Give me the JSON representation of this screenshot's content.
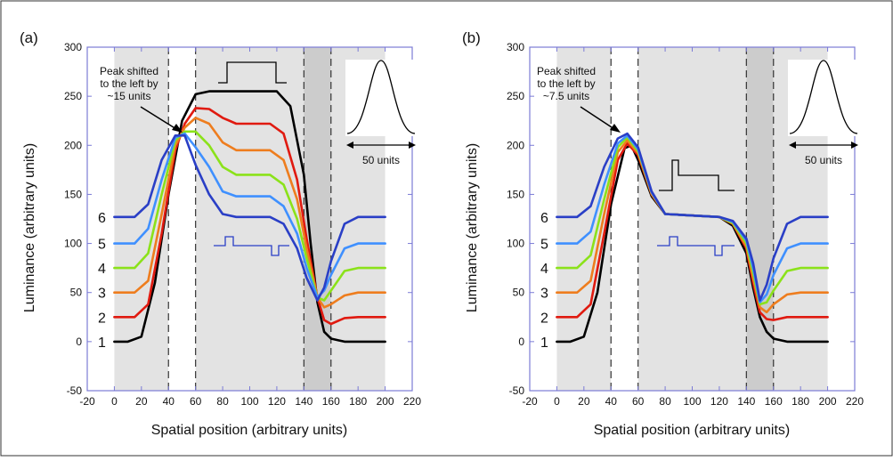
{
  "chart_data": [
    {
      "type": "line",
      "panel_label": "(a)",
      "xlabel": "Spatial position (arbitrary units)",
      "ylabel": "Luminance (arbitrary units)",
      "xlim": [
        -20,
        220
      ],
      "ylim": [
        -50,
        300
      ],
      "xticks": [
        "-20",
        "0",
        "20",
        "40",
        "60",
        "80",
        "100",
        "120",
        "140",
        "160",
        "180",
        "200",
        "220"
      ],
      "yticks": [
        "-50",
        "0",
        "50",
        "100",
        "150",
        "200",
        "250",
        "300"
      ],
      "grid": false,
      "shaded_regions": [
        {
          "from": 0,
          "to": 40,
          "color": "#e3e3e3"
        },
        {
          "from": 60,
          "to": 140,
          "color": "#e3e3e3"
        },
        {
          "from": 140,
          "to": 160,
          "color": "#cccccc"
        },
        {
          "from": 160,
          "to": 200,
          "color": "#e3e3e3"
        }
      ],
      "dashed_lines_x": [
        40,
        60,
        140,
        160
      ],
      "curve_labels": [
        "1",
        "2",
        "3",
        "4",
        "5",
        "6"
      ],
      "series": [
        {
          "color": "#000000",
          "points": [
            [
              0,
              0
            ],
            [
              10,
              0
            ],
            [
              20,
              5
            ],
            [
              30,
              60
            ],
            [
              40,
              150
            ],
            [
              50,
              225
            ],
            [
              60,
              252
            ],
            [
              70,
              255
            ],
            [
              120,
              255
            ],
            [
              130,
              240
            ],
            [
              140,
              170
            ],
            [
              145,
              100
            ],
            [
              150,
              40
            ],
            [
              155,
              10
            ],
            [
              160,
              3
            ],
            [
              170,
              0
            ],
            [
              200,
              0
            ]
          ]
        },
        {
          "color": "#e01a10",
          "points": [
            [
              0,
              25
            ],
            [
              15,
              25
            ],
            [
              25,
              38
            ],
            [
              35,
              110
            ],
            [
              45,
              195
            ],
            [
              52,
              222
            ],
            [
              60,
              238
            ],
            [
              70,
              237
            ],
            [
              80,
              228
            ],
            [
              90,
              222
            ],
            [
              115,
              222
            ],
            [
              125,
              212
            ],
            [
              135,
              165
            ],
            [
              142,
              105
            ],
            [
              150,
              45
            ],
            [
              155,
              22
            ],
            [
              160,
              18
            ],
            [
              170,
              24
            ],
            [
              180,
              25
            ],
            [
              200,
              25
            ]
          ]
        },
        {
          "color": "#ee7d1e",
          "points": [
            [
              0,
              50
            ],
            [
              15,
              50
            ],
            [
              25,
              62
            ],
            [
              35,
              130
            ],
            [
              45,
              200
            ],
            [
              52,
              218
            ],
            [
              60,
              228
            ],
            [
              70,
              222
            ],
            [
              80,
              203
            ],
            [
              90,
              195
            ],
            [
              115,
              195
            ],
            [
              125,
              185
            ],
            [
              135,
              145
            ],
            [
              142,
              95
            ],
            [
              150,
              45
            ],
            [
              155,
              35
            ],
            [
              160,
              38
            ],
            [
              170,
              47
            ],
            [
              180,
              50
            ],
            [
              200,
              50
            ]
          ]
        },
        {
          "color": "#8be21a",
          "points": [
            [
              0,
              75
            ],
            [
              15,
              75
            ],
            [
              25,
              90
            ],
            [
              35,
              150
            ],
            [
              45,
              205
            ],
            [
              52,
              214
            ],
            [
              60,
              214
            ],
            [
              70,
              200
            ],
            [
              80,
              178
            ],
            [
              90,
              170
            ],
            [
              115,
              170
            ],
            [
              125,
              160
            ],
            [
              135,
              125
            ],
            [
              142,
              85
            ],
            [
              150,
              45
            ],
            [
              155,
              42
            ],
            [
              160,
              52
            ],
            [
              170,
              72
            ],
            [
              180,
              75
            ],
            [
              200,
              75
            ]
          ]
        },
        {
          "color": "#3f90ff",
          "points": [
            [
              0,
              100
            ],
            [
              15,
              100
            ],
            [
              25,
              115
            ],
            [
              35,
              165
            ],
            [
              45,
              208
            ],
            [
              52,
              212
            ],
            [
              60,
              198
            ],
            [
              70,
              178
            ],
            [
              80,
              153
            ],
            [
              90,
              148
            ],
            [
              115,
              148
            ],
            [
              125,
              138
            ],
            [
              135,
              110
            ],
            [
              142,
              75
            ],
            [
              150,
              45
            ],
            [
              155,
              52
            ],
            [
              160,
              68
            ],
            [
              170,
              95
            ],
            [
              180,
              100
            ],
            [
              200,
              100
            ]
          ]
        },
        {
          "color": "#2a3fc6",
          "points": [
            [
              0,
              127
            ],
            [
              15,
              127
            ],
            [
              25,
              140
            ],
            [
              35,
              185
            ],
            [
              45,
              210
            ],
            [
              52,
              210
            ],
            [
              60,
              180
            ],
            [
              70,
              150
            ],
            [
              80,
              130
            ],
            [
              90,
              127
            ],
            [
              115,
              127
            ],
            [
              125,
              120
            ],
            [
              135,
              95
            ],
            [
              142,
              65
            ],
            [
              150,
              42
            ],
            [
              155,
              55
            ],
            [
              160,
              82
            ],
            [
              170,
              120
            ],
            [
              180,
              127
            ],
            [
              200,
              127
            ]
          ]
        }
      ],
      "inset": {
        "text": "50 units"
      },
      "annotation": {
        "text": [
          "Peak shifted",
          "to the left by",
          "~15 units"
        ]
      }
    },
    {
      "type": "line",
      "panel_label": "(b)",
      "xlabel": "Spatial position (arbitrary units)",
      "ylabel": "Luminance (arbitrary units)",
      "xlim": [
        -20,
        220
      ],
      "ylim": [
        -50,
        300
      ],
      "xticks": [
        "-20",
        "0",
        "20",
        "40",
        "60",
        "80",
        "100",
        "120",
        "140",
        "160",
        "180",
        "200",
        "220"
      ],
      "yticks": [
        "-50",
        "0",
        "50",
        "100",
        "150",
        "200",
        "250",
        "300"
      ],
      "grid": false,
      "shaded_regions": [
        {
          "from": 0,
          "to": 40,
          "color": "#e3e3e3"
        },
        {
          "from": 60,
          "to": 140,
          "color": "#e3e3e3"
        },
        {
          "from": 140,
          "to": 160,
          "color": "#cccccc"
        },
        {
          "from": 160,
          "to": 200,
          "color": "#e3e3e3"
        }
      ],
      "dashed_lines_x": [
        40,
        60,
        140,
        160
      ],
      "curve_labels": [
        "1",
        "2",
        "3",
        "4",
        "5",
        "6"
      ],
      "series": [
        {
          "color": "#000000",
          "points": [
            [
              0,
              0
            ],
            [
              10,
              0
            ],
            [
              20,
              5
            ],
            [
              30,
              50
            ],
            [
              40,
              140
            ],
            [
              50,
              197
            ],
            [
              55,
              200
            ],
            [
              60,
              185
            ],
            [
              70,
              148
            ],
            [
              80,
              130
            ],
            [
              120,
              127
            ],
            [
              130,
              118
            ],
            [
              140,
              90
            ],
            [
              145,
              55
            ],
            [
              150,
              25
            ],
            [
              155,
              10
            ],
            [
              160,
              3
            ],
            [
              170,
              0
            ],
            [
              200,
              0
            ]
          ]
        },
        {
          "color": "#e01a10",
          "points": [
            [
              0,
              25
            ],
            [
              15,
              25
            ],
            [
              25,
              38
            ],
            [
              35,
              110
            ],
            [
              45,
              185
            ],
            [
              52,
              202
            ],
            [
              60,
              190
            ],
            [
              70,
              150
            ],
            [
              80,
              130
            ],
            [
              120,
              127
            ],
            [
              130,
              120
            ],
            [
              140,
              95
            ],
            [
              145,
              60
            ],
            [
              150,
              30
            ],
            [
              155,
              23
            ],
            [
              160,
              22
            ],
            [
              170,
              25
            ],
            [
              200,
              25
            ]
          ]
        },
        {
          "color": "#ee7d1e",
          "points": [
            [
              0,
              50
            ],
            [
              15,
              50
            ],
            [
              25,
              62
            ],
            [
              35,
              130
            ],
            [
              45,
              193
            ],
            [
              52,
              205
            ],
            [
              60,
              192
            ],
            [
              70,
              150
            ],
            [
              80,
              130
            ],
            [
              120,
              127
            ],
            [
              130,
              120
            ],
            [
              140,
              97
            ],
            [
              145,
              65
            ],
            [
              150,
              35
            ],
            [
              155,
              30
            ],
            [
              160,
              38
            ],
            [
              170,
              48
            ],
            [
              180,
              50
            ],
            [
              200,
              50
            ]
          ]
        },
        {
          "color": "#8be21a",
          "points": [
            [
              0,
              75
            ],
            [
              15,
              75
            ],
            [
              25,
              88
            ],
            [
              35,
              145
            ],
            [
              45,
              198
            ],
            [
              52,
              208
            ],
            [
              60,
              194
            ],
            [
              70,
              152
            ],
            [
              80,
              130
            ],
            [
              120,
              127
            ],
            [
              130,
              121
            ],
            [
              140,
              100
            ],
            [
              145,
              70
            ],
            [
              150,
              38
            ],
            [
              155,
              40
            ],
            [
              160,
              52
            ],
            [
              170,
              72
            ],
            [
              180,
              75
            ],
            [
              200,
              75
            ]
          ]
        },
        {
          "color": "#3f90ff",
          "points": [
            [
              0,
              100
            ],
            [
              15,
              100
            ],
            [
              25,
              112
            ],
            [
              35,
              160
            ],
            [
              45,
              202
            ],
            [
              52,
              210
            ],
            [
              60,
              196
            ],
            [
              70,
              152
            ],
            [
              80,
              130
            ],
            [
              120,
              127
            ],
            [
              130,
              122
            ],
            [
              140,
              103
            ],
            [
              145,
              75
            ],
            [
              150,
              40
            ],
            [
              155,
              48
            ],
            [
              160,
              68
            ],
            [
              170,
              95
            ],
            [
              180,
              100
            ],
            [
              200,
              100
            ]
          ]
        },
        {
          "color": "#2a3fc6",
          "points": [
            [
              0,
              127
            ],
            [
              15,
              127
            ],
            [
              25,
              138
            ],
            [
              35,
              178
            ],
            [
              45,
              207
            ],
            [
              52,
              212
            ],
            [
              60,
              198
            ],
            [
              70,
              153
            ],
            [
              80,
              130
            ],
            [
              120,
              127
            ],
            [
              130,
              123
            ],
            [
              140,
              105
            ],
            [
              145,
              80
            ],
            [
              150,
              42
            ],
            [
              155,
              58
            ],
            [
              160,
              85
            ],
            [
              170,
              120
            ],
            [
              180,
              127
            ],
            [
              200,
              127
            ]
          ]
        }
      ],
      "inset": {
        "text": "50 units"
      },
      "annotation": {
        "text": [
          "Peak shifted",
          "to the left by",
          "~7.5 units"
        ]
      }
    }
  ]
}
